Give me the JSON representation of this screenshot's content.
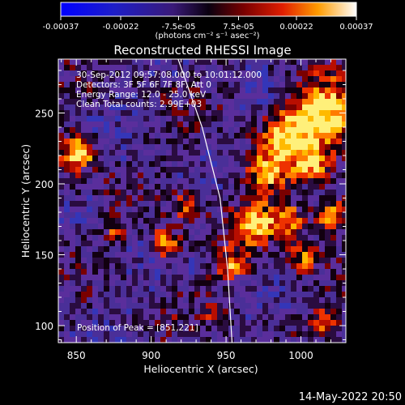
{
  "chart_data": {
    "type": "heatmap",
    "title": "Reconstructed RHESSI Image",
    "xlabel": "Heliocentric X (arcsec)",
    "ylabel": "Heliocentric Y (arcsec)",
    "xlim": [
      838,
      1030
    ],
    "ylim": [
      88,
      288
    ],
    "x_ticks": [
      850,
      900,
      950,
      1000
    ],
    "y_ticks": [
      100,
      150,
      200,
      250
    ],
    "x_tick_labels": [
      "850",
      "900",
      "950",
      "1000"
    ],
    "y_tick_labels": [
      "100",
      "150",
      "200",
      "250"
    ],
    "colorbar": {
      "tick_values": [
        -0.00037,
        -0.00022,
        -7.5e-05,
        7.5e-05,
        0.00022,
        0.00037
      ],
      "tick_labels": [
        "-0.00037",
        "-0.00022",
        "-7.5e-05",
        "7.5e-05",
        "0.00022",
        "0.00037"
      ],
      "range": [
        -0.00037,
        0.00037
      ],
      "units_label": "(photons cm⁻² s⁻¹ asec⁻²)"
    },
    "annotations": {
      "time_range": "30-Sep-2012 09:57:08.000 to 10:01:12.000",
      "detectors": "Detectors: 3F 5F 6F 7F 8F, Att 0",
      "energy": "Energy Range: 12.0 - 25.0 keV",
      "clean": "Clean     Total counts: 2.99E+03",
      "peak": "Position of Peak = [851,221]"
    },
    "peak_position": [
      851,
      221
    ],
    "limb_line": [
      [
        918,
        288
      ],
      [
        934,
        240
      ],
      [
        946,
        190
      ],
      [
        951,
        140
      ],
      [
        954,
        88
      ]
    ]
  },
  "footer": {
    "timestamp": "14-May-2022 20:50"
  }
}
